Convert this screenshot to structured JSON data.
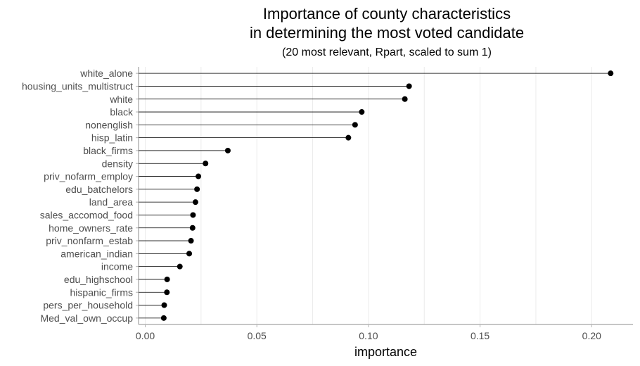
{
  "chart_data": {
    "type": "scatter",
    "title_lines": [
      "Importance of county characteristics",
      "in determining the most voted candidate"
    ],
    "subtitle": "(20 most relevant, Rpart, scaled to sum 1)",
    "xlabel": "importance",
    "ylabel": "",
    "xlim": [
      -0.003,
      0.2185
    ],
    "xticks": [
      0.0,
      0.05,
      0.1,
      0.15,
      0.2
    ],
    "xtick_labels": [
      "0.00",
      "0.05",
      "0.10",
      "0.15",
      "0.20"
    ],
    "grid": "vertical",
    "categories": [
      "white_alone",
      "housing_units_multistruct",
      "white",
      "black",
      "nonenglish",
      "hisp_latin",
      "black_firms",
      "density",
      "priv_nofarm_employ",
      "edu_batchelors",
      "land_area",
      "sales_accomod_food",
      "home_owners_rate",
      "priv_nonfarm_estab",
      "american_indian",
      "income",
      "edu_highschool",
      "hispanic_firms",
      "pers_per_household",
      "Med_val_own_occup"
    ],
    "values": [
      0.2085,
      0.1182,
      0.1163,
      0.097,
      0.094,
      0.091,
      0.037,
      0.027,
      0.0238,
      0.0232,
      0.0225,
      0.0214,
      0.0212,
      0.0205,
      0.0197,
      0.0155,
      0.0098,
      0.0097,
      0.0085,
      0.0083
    ],
    "colors": {
      "point": "#000000",
      "stem": "#000000",
      "grid": "#ebebeb",
      "axis": "#b3b3b3"
    }
  }
}
